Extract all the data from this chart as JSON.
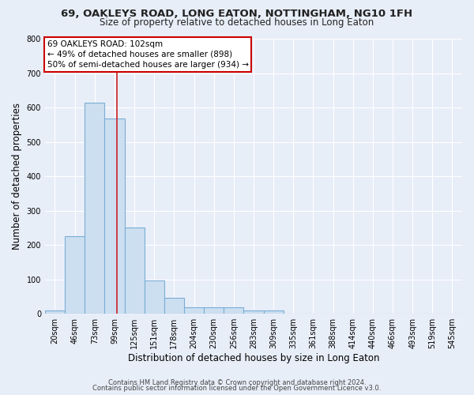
{
  "title_line1": "69, OAKLEYS ROAD, LONG EATON, NOTTINGHAM, NG10 1FH",
  "title_line2": "Size of property relative to detached houses in Long Eaton",
  "xlabel": "Distribution of detached houses by size in Long Eaton",
  "ylabel": "Number of detached properties",
  "categories": [
    "20sqm",
    "46sqm",
    "73sqm",
    "99sqm",
    "125sqm",
    "151sqm",
    "178sqm",
    "204sqm",
    "230sqm",
    "256sqm",
    "283sqm",
    "309sqm",
    "335sqm",
    "361sqm",
    "388sqm",
    "414sqm",
    "440sqm",
    "466sqm",
    "493sqm",
    "519sqm",
    "545sqm"
  ],
  "values": [
    10,
    225,
    615,
    567,
    252,
    96,
    47,
    20,
    20,
    20,
    10,
    10,
    0,
    0,
    0,
    0,
    0,
    0,
    0,
    0,
    0
  ],
  "bar_color": "#ccdff0",
  "bar_edge_color": "#7aadd4",
  "bar_linewidth": 0.8,
  "background_color": "#e8eef8",
  "plot_bg_color": "#e8eef8",
  "grid_color": "#ffffff",
  "ylim": [
    0,
    800
  ],
  "yticks": [
    0,
    100,
    200,
    300,
    400,
    500,
    600,
    700,
    800
  ],
  "annotation_text": "69 OAKLEYS ROAD: 102sqm\n← 49% of detached houses are smaller (898)\n50% of semi-detached houses are larger (934) →",
  "annotation_box_color": "#ffffff",
  "annotation_box_edge": "#cc0000",
  "vline_color": "#cc2222",
  "footer_line1": "Contains HM Land Registry data © Crown copyright and database right 2024.",
  "footer_line2": "Contains public sector information licensed under the Open Government Licence v3.0.",
  "title_fontsize": 9.5,
  "subtitle_fontsize": 8.5,
  "axis_label_fontsize": 8.5,
  "tick_fontsize": 7,
  "annot_fontsize": 7.5,
  "footer_fontsize": 6
}
